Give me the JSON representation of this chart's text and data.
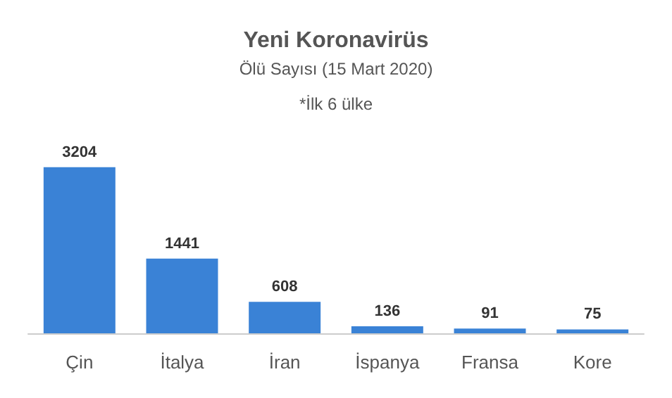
{
  "chart_data": {
    "type": "bar",
    "title": "Yeni Koronavirüs",
    "subtitle": "Ölü Sayısı (15 Mart 2020)",
    "annotations": [
      "*İlk 6 ülke"
    ],
    "categories": [
      "Çin",
      "İtalya",
      "İran",
      "İspanya",
      "Fransa",
      "Kore"
    ],
    "values": [
      3204,
      1441,
      608,
      136,
      91,
      75
    ],
    "color": "#3a82d6",
    "data_labels": true
  }
}
